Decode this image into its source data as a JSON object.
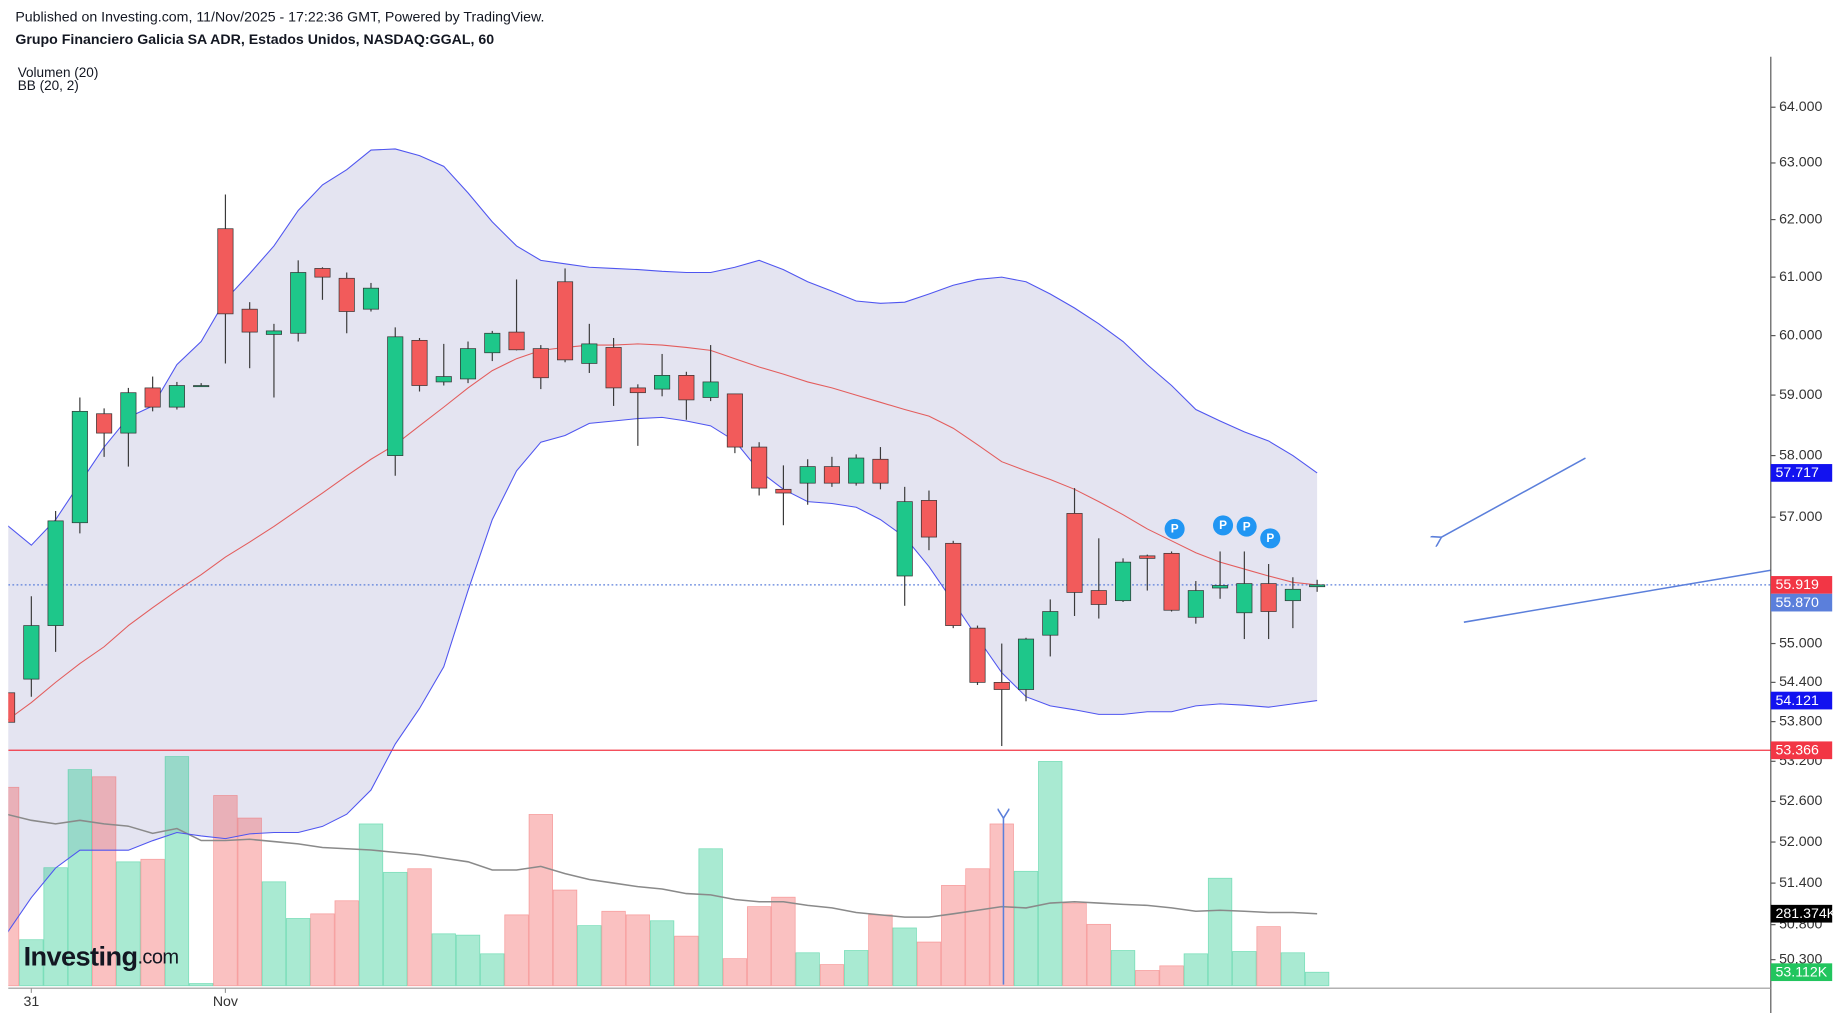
{
  "chart_data": {
    "type": "candlestick",
    "published": "Published on Investing.com, 11/Nov/2025 - 17:22:36 GMT, Powered by TradingView.",
    "title": "Grupo Financiero Galicia SA ADR, Estados Unidos, NASDAQ:GGAL, 60",
    "indicator_labels": [
      "Volumen (20)",
      "BB (20, 2)"
    ],
    "logo": "Investing",
    "logo_suffix": ".com",
    "categories": [
      null,
      "31",
      null,
      null,
      null,
      null,
      null,
      null,
      null,
      "Nov",
      null,
      null,
      null,
      null,
      null,
      null,
      null,
      null,
      null,
      null,
      null,
      null,
      null,
      null,
      null,
      null,
      null,
      null,
      null,
      null,
      null,
      null,
      null,
      null,
      null,
      null,
      null,
      null,
      null,
      null,
      null,
      null,
      null,
      null,
      null,
      null,
      null,
      null,
      null,
      null,
      null,
      null,
      null,
      null,
      null
    ],
    "open": [
      54.24,
      54.45,
      55.28,
      56.91,
      58.69,
      58.37,
      59.12,
      58.8,
      59.16,
      61.84,
      60.45,
      60.02,
      60.04,
      61.15,
      60.98,
      60.45,
      58.0,
      59.92,
      59.22,
      59.27,
      59.71,
      60.06,
      59.78,
      60.92,
      59.53,
      59.8,
      59.12,
      59.1,
      59.33,
      58.96,
      59.02,
      58.14,
      57.45,
      57.55,
      57.82,
      57.55,
      57.94,
      56.06,
      57.27,
      56.58,
      55.24,
      54.4,
      54.29,
      55.13,
      57.06,
      55.83,
      55.67,
      56.38,
      56.42,
      55.41,
      55.87,
      55.48,
      55.94,
      55.67,
      55.89
    ],
    "high": [
      54.36,
      55.74,
      57.1,
      58.96,
      58.78,
      59.12,
      59.31,
      59.22,
      59.2,
      62.44,
      60.57,
      60.2,
      61.29,
      61.17,
      61.08,
      60.9,
      60.14,
      59.96,
      59.86,
      59.9,
      60.08,
      60.96,
      59.84,
      61.15,
      60.2,
      59.96,
      59.18,
      59.69,
      59.39,
      59.84,
      59.02,
      58.22,
      57.84,
      57.94,
      57.98,
      58.02,
      58.14,
      57.49,
      57.43,
      56.62,
      55.28,
      55.0,
      55.09,
      55.69,
      57.47,
      56.66,
      56.34,
      56.4,
      56.45,
      55.98,
      56.45,
      56.45,
      56.25,
      56.04,
      56.0
    ],
    "low": [
      53.75,
      54.18,
      54.87,
      56.74,
      57.98,
      57.82,
      58.73,
      58.76,
      59.14,
      59.53,
      59.45,
      58.96,
      59.9,
      60.61,
      60.04,
      60.41,
      57.67,
      59.06,
      59.16,
      59.2,
      59.57,
      59.75,
      59.1,
      59.55,
      59.37,
      58.82,
      58.16,
      58.98,
      58.59,
      58.9,
      58.04,
      57.35,
      56.87,
      57.2,
      57.49,
      57.51,
      57.45,
      55.59,
      56.47,
      55.24,
      54.36,
      53.43,
      54.11,
      54.8,
      55.43,
      55.39,
      55.65,
      55.83,
      55.5,
      55.31,
      55.7,
      55.07,
      55.07,
      55.24,
      55.81
    ],
    "close": [
      53.79,
      55.28,
      56.94,
      58.73,
      58.37,
      59.04,
      58.8,
      59.16,
      59.16,
      60.37,
      60.06,
      60.08,
      61.08,
      61.0,
      60.41,
      60.81,
      59.98,
      59.16,
      59.31,
      59.78,
      60.04,
      59.76,
      59.29,
      59.59,
      59.86,
      59.12,
      59.04,
      59.33,
      58.92,
      59.22,
      58.14,
      57.47,
      57.39,
      57.82,
      57.55,
      57.96,
      57.55,
      57.25,
      56.68,
      55.28,
      54.4,
      54.29,
      55.07,
      55.5,
      55.8,
      55.61,
      56.28,
      56.34,
      55.52,
      55.83,
      55.91,
      55.94,
      55.5,
      55.85,
      55.92
    ],
    "volume": [
      775000,
      180000,
      461000,
      844000,
      816000,
      484000,
      494000,
      895000,
      9000,
      743000,
      655000,
      406000,
      263000,
      281000,
      332000,
      632000,
      443000,
      457000,
      203000,
      198000,
      125000,
      277000,
      669000,
      374000,
      235000,
      291000,
      277000,
      254000,
      194000,
      535000,
      106000,
      309000,
      346000,
      129000,
      83000,
      138000,
      277000,
      226000,
      171000,
      392000,
      457000,
      632000,
      447000,
      876000,
      323000,
      240000,
      138000,
      60000,
      78000,
      125000,
      420000,
      134000,
      231000,
      129000,
      53112
    ],
    "volume_ma": [
      669000,
      646000,
      632000,
      646000,
      632000,
      623000,
      595000,
      614000,
      567000,
      567000,
      572000,
      563000,
      554000,
      540000,
      535000,
      530000,
      521000,
      512000,
      498000,
      484000,
      452000,
      452000,
      466000,
      438000,
      415000,
      401000,
      387000,
      378000,
      360000,
      355000,
      337000,
      328000,
      328000,
      314000,
      304000,
      286000,
      277000,
      268000,
      268000,
      281000,
      295000,
      309000,
      304000,
      323000,
      328000,
      323000,
      318000,
      314000,
      304000,
      291000,
      295000,
      291000,
      286000,
      286000,
      281374
    ],
    "bb_upper": [
      56.87,
      56.55,
      56.96,
      57.55,
      58.14,
      58.63,
      58.82,
      59.51,
      59.9,
      60.61,
      61.06,
      61.54,
      62.16,
      62.61,
      62.88,
      63.23,
      63.25,
      63.13,
      62.94,
      62.47,
      61.96,
      61.54,
      61.29,
      61.23,
      61.17,
      61.15,
      61.13,
      61.1,
      61.08,
      61.08,
      61.17,
      61.29,
      61.13,
      60.92,
      60.76,
      60.59,
      60.55,
      60.57,
      60.71,
      60.86,
      60.96,
      61.0,
      60.92,
      60.71,
      60.47,
      60.2,
      59.9,
      59.51,
      59.16,
      58.76,
      58.57,
      58.39,
      58.24,
      58.0,
      57.717
    ],
    "bb_middle": [
      53.82,
      54.09,
      54.4,
      54.69,
      54.95,
      55.28,
      55.56,
      55.83,
      56.08,
      56.36,
      56.6,
      56.85,
      57.12,
      57.39,
      57.67,
      57.94,
      58.18,
      58.49,
      58.8,
      59.12,
      59.41,
      59.61,
      59.75,
      59.8,
      59.84,
      59.84,
      59.86,
      59.84,
      59.8,
      59.75,
      59.61,
      59.47,
      59.35,
      59.22,
      59.12,
      59.0,
      58.88,
      58.76,
      58.65,
      58.45,
      58.18,
      57.9,
      57.75,
      57.61,
      57.45,
      57.25,
      57.04,
      56.81,
      56.62,
      56.43,
      56.28,
      56.17,
      56.06,
      55.96,
      55.919
    ],
    "bb_lower": [
      50.68,
      51.19,
      51.62,
      51.88,
      51.88,
      51.88,
      52.02,
      52.14,
      52.09,
      52.05,
      52.12,
      52.14,
      52.14,
      52.23,
      52.41,
      52.77,
      53.46,
      54.0,
      54.64,
      55.83,
      56.96,
      57.75,
      58.22,
      58.33,
      58.53,
      58.57,
      58.61,
      58.63,
      58.57,
      58.49,
      58.24,
      57.75,
      57.45,
      57.25,
      57.22,
      57.16,
      56.96,
      56.68,
      56.21,
      55.65,
      55.09,
      54.55,
      54.18,
      54.04,
      53.98,
      53.91,
      53.91,
      53.95,
      53.95,
      54.04,
      54.07,
      54.05,
      54.02,
      54.07,
      54.121
    ],
    "ylim": [
      49.93,
      64.92
    ],
    "log_scale": true,
    "grid": false,
    "yticks": [
      {
        "value": 64,
        "label": "64.000"
      },
      {
        "value": 63,
        "label": "63.000"
      },
      {
        "value": 62,
        "label": "62.000"
      },
      {
        "value": 61,
        "label": "61.000"
      },
      {
        "value": 60,
        "label": "60.000"
      },
      {
        "value": 59,
        "label": "59.000"
      },
      {
        "value": 58,
        "label": "58.000"
      },
      {
        "value": 57,
        "label": "57.000"
      },
      {
        "value": 55,
        "label": "55.000"
      },
      {
        "value": 54.4,
        "label": "54.400"
      },
      {
        "value": 53.8,
        "label": "53.800"
      },
      {
        "value": 53.2,
        "label": "53.200"
      },
      {
        "value": 52.6,
        "label": "52.600"
      },
      {
        "value": 52,
        "label": "52.000"
      },
      {
        "value": 51.4,
        "label": "51.400"
      },
      {
        "value": 50.8,
        "label": "50.800"
      },
      {
        "value": 50.3,
        "label": "50.300"
      }
    ],
    "volume_ylim": [
      0,
      1000000
    ],
    "up_color": "#1ec78a",
    "down_color": "#f25b5b",
    "wick_color": "#3a3a3a",
    "band_fill": "#e4e4f1",
    "band_color": "#4f55f0",
    "middle_color": "#e35d5d",
    "volume_ma_color": "#8a8a8a",
    "price_labels": [
      {
        "value": 57.717,
        "color": "#1212f0"
      },
      {
        "value": 55.919,
        "color": "#f23645",
        "line": "dotted",
        "line_color": "#5b7fdb"
      },
      {
        "value": 55.87,
        "label": "55.870",
        "color": "#5b7fdb"
      },
      {
        "value": 54.121,
        "color": "#1212f0"
      },
      {
        "value": 53.366,
        "color": "#f23645",
        "line": "solid",
        "line_color": "#f23645"
      }
    ],
    "volume_labels": [
      {
        "value": 281374,
        "label": "281.374K",
        "color": "#000000"
      },
      {
        "value": 53112,
        "label": "53.112K",
        "color": "#22c55e"
      }
    ],
    "event_markers": [
      "P",
      "P",
      "P",
      "P"
    ]
  }
}
